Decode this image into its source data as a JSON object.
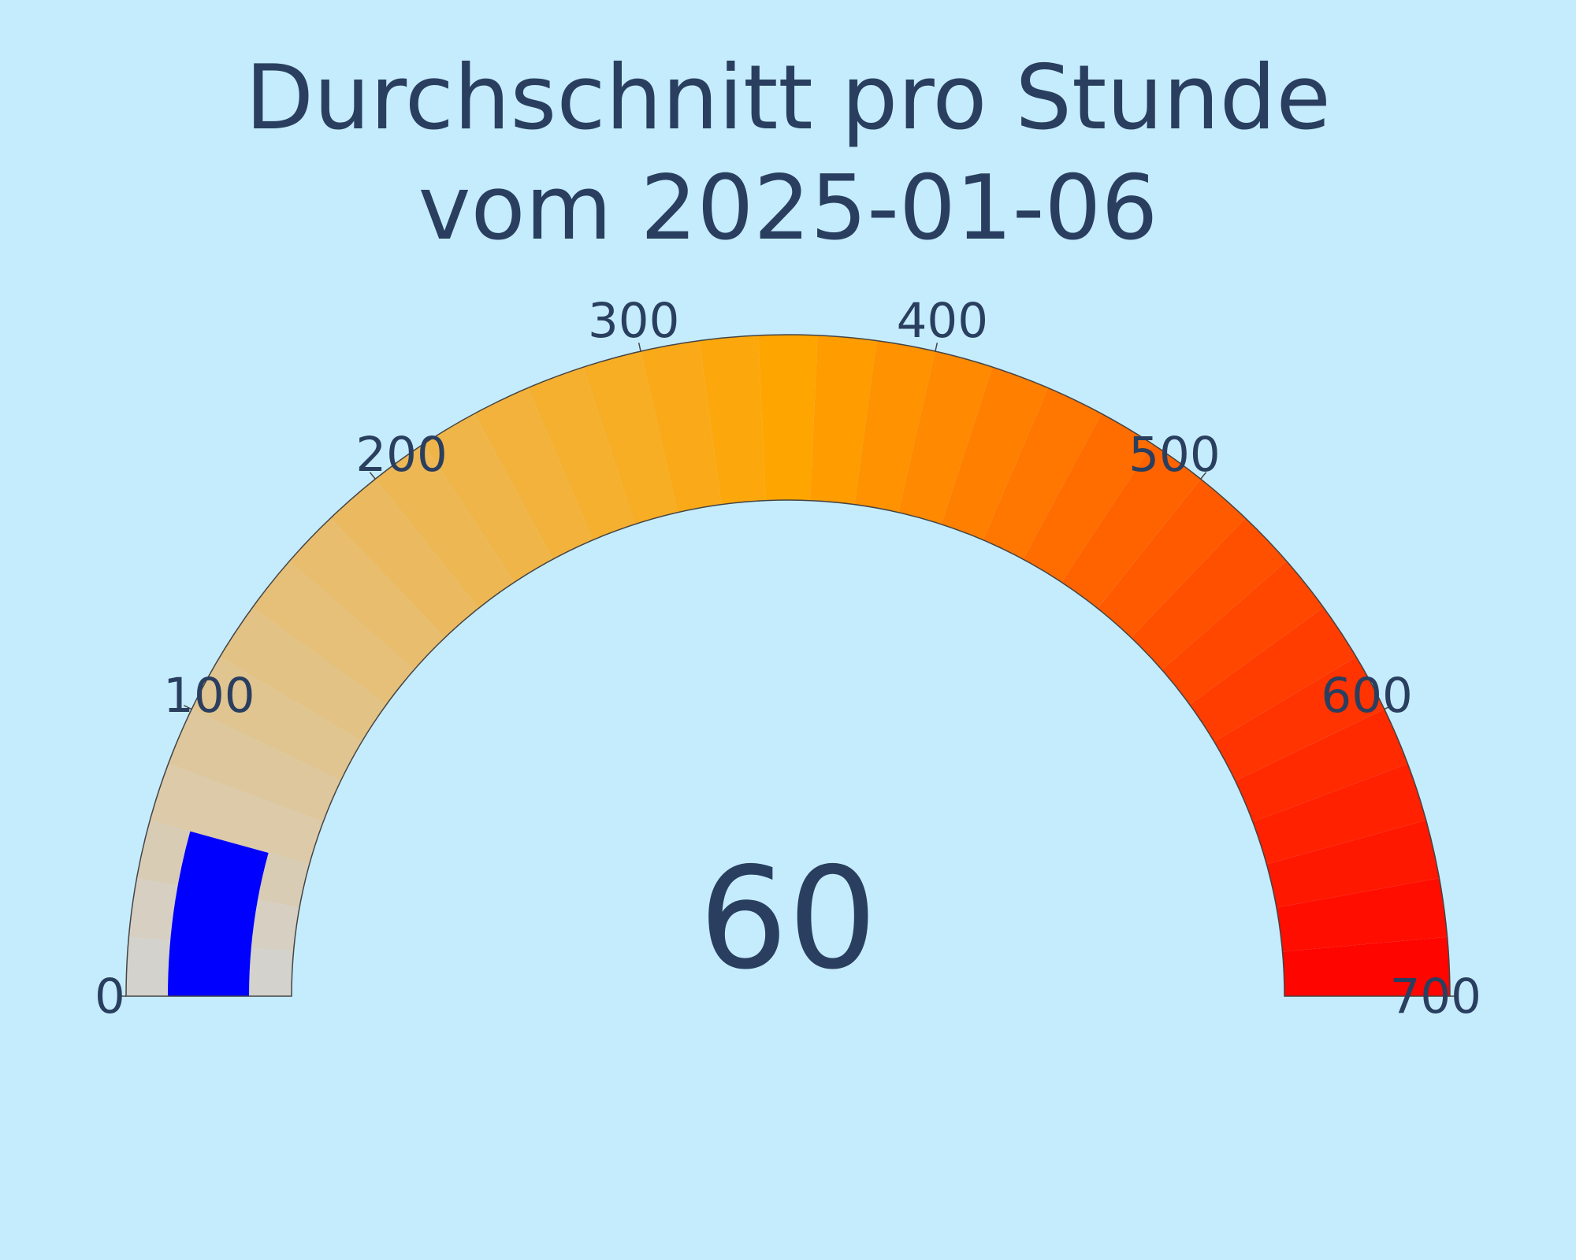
{
  "chart_data": {
    "type": "gauge",
    "title_lines": [
      "Durchschnitt pro Stunde",
      "vom 2025-01-06"
    ],
    "value": 60,
    "value_text": "60",
    "range": [
      0,
      700
    ],
    "ticks": [
      {
        "value": 0,
        "label": "0"
      },
      {
        "value": 100,
        "label": "100"
      },
      {
        "value": 200,
        "label": "200"
      },
      {
        "value": 300,
        "label": "300"
      },
      {
        "value": 400,
        "label": "400"
      },
      {
        "value": 500,
        "label": "500"
      },
      {
        "value": 600,
        "label": "600"
      },
      {
        "value": 700,
        "label": "700"
      }
    ],
    "color_steps": {
      "count": 35,
      "stops": [
        {
          "value": 0,
          "color": "#d3d3d3"
        },
        {
          "value": 350,
          "color": "#ffa500"
        },
        {
          "value": 700,
          "color": "#ff0000"
        }
      ]
    },
    "bar_color": "#0000ff"
  },
  "colors": {
    "background": "#c5ecfd",
    "text": "#2a3f5f",
    "outline": "#444444"
  }
}
